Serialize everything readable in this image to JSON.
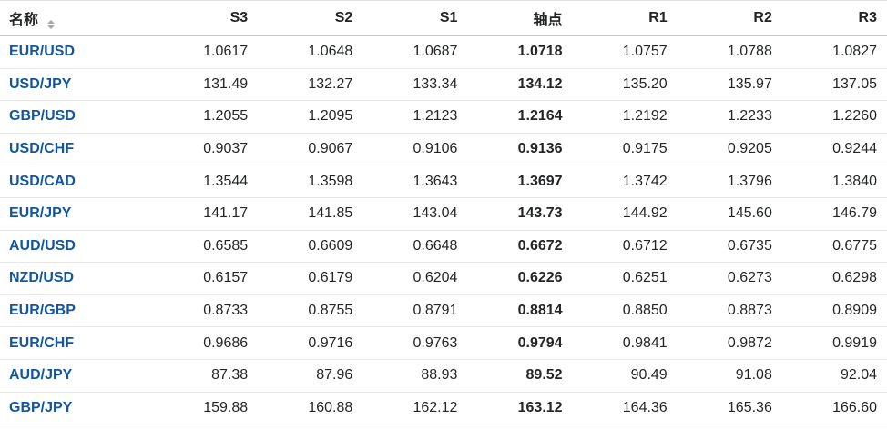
{
  "colors": {
    "link_blue": "#1256a0",
    "text_dark": "#232526",
    "header_border": "#c7c7c7",
    "row_border": "#e7e7e7"
  },
  "table": {
    "columns": {
      "name": "名称",
      "s3": "S3",
      "s2": "S2",
      "s1": "S1",
      "pivot": "轴点",
      "r1": "R1",
      "r2": "R2",
      "r3": "R3"
    },
    "sort_icon": "up-down-sort-arrows",
    "rows": [
      {
        "name": "EUR/USD",
        "s3": "1.0617",
        "s2": "1.0648",
        "s1": "1.0687",
        "pivot": "1.0718",
        "r1": "1.0757",
        "r2": "1.0788",
        "r3": "1.0827"
      },
      {
        "name": "USD/JPY",
        "s3": "131.49",
        "s2": "132.27",
        "s1": "133.34",
        "pivot": "134.12",
        "r1": "135.20",
        "r2": "135.97",
        "r3": "137.05"
      },
      {
        "name": "GBP/USD",
        "s3": "1.2055",
        "s2": "1.2095",
        "s1": "1.2123",
        "pivot": "1.2164",
        "r1": "1.2192",
        "r2": "1.2233",
        "r3": "1.2260"
      },
      {
        "name": "USD/CHF",
        "s3": "0.9037",
        "s2": "0.9067",
        "s1": "0.9106",
        "pivot": "0.9136",
        "r1": "0.9175",
        "r2": "0.9205",
        "r3": "0.9244"
      },
      {
        "name": "USD/CAD",
        "s3": "1.3544",
        "s2": "1.3598",
        "s1": "1.3643",
        "pivot": "1.3697",
        "r1": "1.3742",
        "r2": "1.3796",
        "r3": "1.3840"
      },
      {
        "name": "EUR/JPY",
        "s3": "141.17",
        "s2": "141.85",
        "s1": "143.04",
        "pivot": "143.73",
        "r1": "144.92",
        "r2": "145.60",
        "r3": "146.79"
      },
      {
        "name": "AUD/USD",
        "s3": "0.6585",
        "s2": "0.6609",
        "s1": "0.6648",
        "pivot": "0.6672",
        "r1": "0.6712",
        "r2": "0.6735",
        "r3": "0.6775"
      },
      {
        "name": "NZD/USD",
        "s3": "0.6157",
        "s2": "0.6179",
        "s1": "0.6204",
        "pivot": "0.6226",
        "r1": "0.6251",
        "r2": "0.6273",
        "r3": "0.6298"
      },
      {
        "name": "EUR/GBP",
        "s3": "0.8733",
        "s2": "0.8755",
        "s1": "0.8791",
        "pivot": "0.8814",
        "r1": "0.8850",
        "r2": "0.8873",
        "r3": "0.8909"
      },
      {
        "name": "EUR/CHF",
        "s3": "0.9686",
        "s2": "0.9716",
        "s1": "0.9763",
        "pivot": "0.9794",
        "r1": "0.9841",
        "r2": "0.9872",
        "r3": "0.9919"
      },
      {
        "name": "AUD/JPY",
        "s3": "87.38",
        "s2": "87.96",
        "s1": "88.93",
        "pivot": "89.52",
        "r1": "90.49",
        "r2": "91.08",
        "r3": "92.04"
      },
      {
        "name": "GBP/JPY",
        "s3": "159.88",
        "s2": "160.88",
        "s1": "162.12",
        "pivot": "163.12",
        "r1": "164.36",
        "r2": "165.36",
        "r3": "166.60"
      }
    ]
  }
}
